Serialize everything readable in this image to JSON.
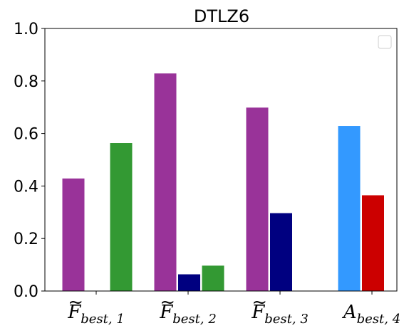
{
  "chart_data": {
    "type": "bar",
    "title": "DTLZ6",
    "xlabel": "",
    "ylabel": "",
    "ylim": [
      0,
      1.0
    ],
    "yticks": [
      "0.0",
      "0.2",
      "0.4",
      "0.6",
      "0.8",
      "1.0"
    ],
    "categories": [
      {
        "accent": "~",
        "main": "F",
        "sub": "best, 1"
      },
      {
        "accent": "~",
        "main": "F",
        "sub": "best, 2"
      },
      {
        "accent": "~",
        "main": "F",
        "sub": "best, 3"
      },
      {
        "accent": "",
        "main": "A",
        "sub": "best, 4"
      }
    ],
    "legend": {
      "placement": "top-right",
      "entries": []
    },
    "grid": false,
    "bars": [
      {
        "category": 0,
        "slot": 0,
        "value": 0.43,
        "color": "#993399"
      },
      {
        "category": 0,
        "slot": 2,
        "value": 0.565,
        "color": "#339933"
      },
      {
        "category": 1,
        "slot": 0,
        "value": 0.83,
        "color": "#993399"
      },
      {
        "category": 1,
        "slot": 1,
        "value": 0.065,
        "color": "#000080"
      },
      {
        "category": 1,
        "slot": 2,
        "value": 0.098,
        "color": "#339933"
      },
      {
        "category": 2,
        "slot": 0,
        "value": 0.7,
        "color": "#993399"
      },
      {
        "category": 2,
        "slot": 1,
        "value": 0.298,
        "color": "#000080"
      },
      {
        "category": 3,
        "slot": 0,
        "value": 0.63,
        "color": "#3399FF"
      },
      {
        "category": 3,
        "slot": 1,
        "value": 0.366,
        "color": "#CC0000"
      }
    ]
  }
}
